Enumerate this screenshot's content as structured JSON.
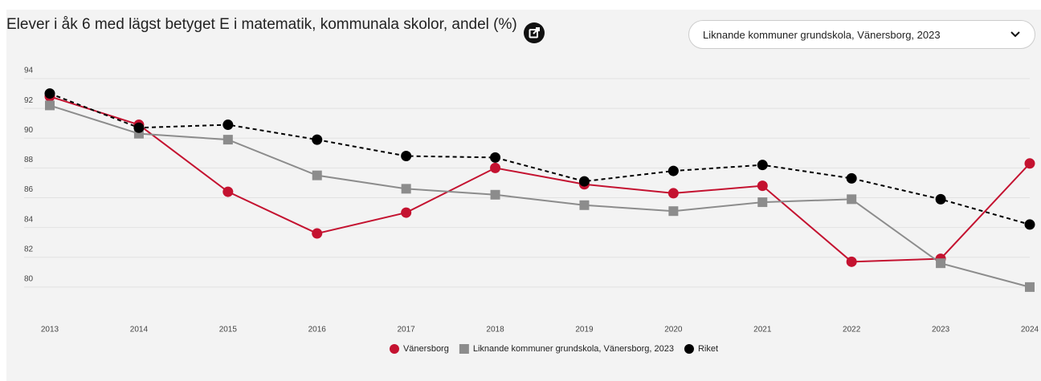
{
  "chart_data": {
    "type": "line",
    "title": "Elever i åk 6 med lägst betyget E i matematik, kommunala skolor, andel (%)",
    "selector": "Liknande kommuner grundskola, Vänersborg, 2023",
    "categories": [
      "2013",
      "2014",
      "2015",
      "2016",
      "2017",
      "2018",
      "2019",
      "2020",
      "2021",
      "2022",
      "2023",
      "2024"
    ],
    "ylim": [
      78,
      94
    ],
    "yticks": [
      80,
      82,
      84,
      86,
      88,
      90,
      92,
      94
    ],
    "grid": true,
    "legend": "bottom",
    "series": [
      {
        "name": "Vänersborg",
        "color": "#c41230",
        "marker": "circle",
        "dashed": false,
        "values": [
          92.8,
          90.9,
          86.4,
          83.6,
          85.0,
          88.0,
          86.9,
          86.3,
          86.8,
          81.7,
          81.9,
          88.3
        ]
      },
      {
        "name": "Liknande kommuner grundskola, Vänersborg, 2023",
        "color": "#8c8c8c",
        "marker": "square",
        "dashed": false,
        "values": [
          92.2,
          90.3,
          89.9,
          87.5,
          86.6,
          86.2,
          85.5,
          85.1,
          85.7,
          85.9,
          81.6,
          80.0
        ]
      },
      {
        "name": "Riket",
        "color": "#000000",
        "marker": "circle",
        "dashed": true,
        "values": [
          93.0,
          90.7,
          90.9,
          89.9,
          88.8,
          88.7,
          87.1,
          87.8,
          88.2,
          87.3,
          85.9,
          84.2
        ]
      }
    ]
  }
}
